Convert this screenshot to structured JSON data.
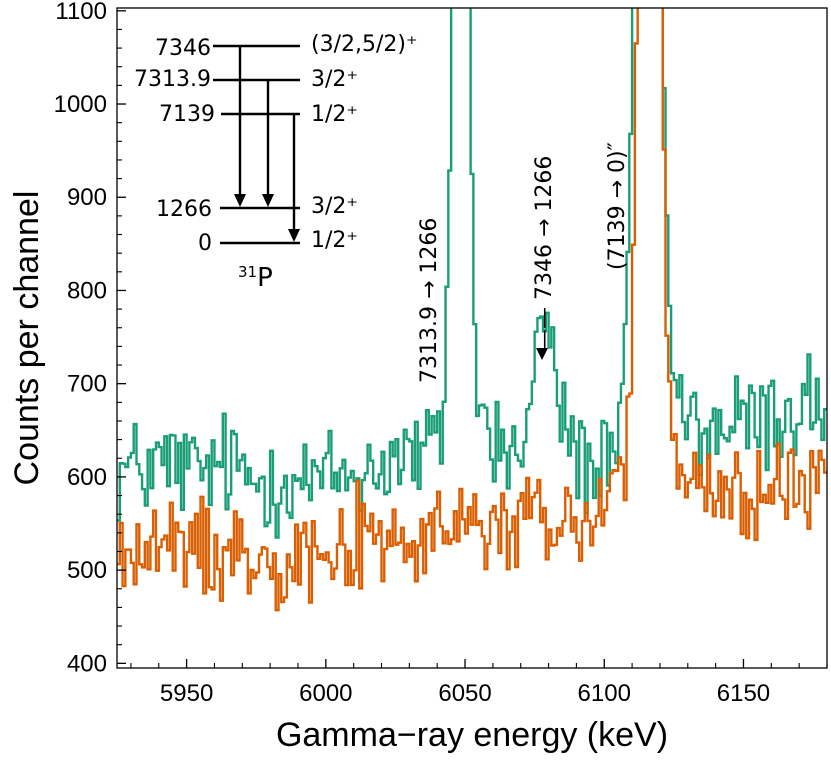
{
  "chart_data": {
    "type": "line",
    "style": "step",
    "xlabel": "Gamma−ray energy (keV)",
    "ylabel": "Counts per channel",
    "xlim": [
      5925,
      6180
    ],
    "ylim": [
      395,
      1103
    ],
    "xticks": [
      5950,
      6000,
      6050,
      6100,
      6150
    ],
    "yticks": [
      400,
      500,
      600,
      700,
      800,
      900,
      1000,
      1100
    ],
    "colors": {
      "green": "#1a9e77",
      "orange": "#d95f02"
    },
    "series": [
      {
        "name": "green",
        "color": "#1a9e77",
        "bin_width": 1.0,
        "features": [
          {
            "center": 6048.2,
            "height": 540,
            "sigma": 2.3
          },
          {
            "center": 6078.5,
            "height": 80,
            "sigma": 3.0
          },
          {
            "center": 6115.5,
            "height": 1200,
            "sigma": 3.5
          }
        ],
        "x": [
          5925,
          5935,
          5945,
          5955,
          5965,
          5975,
          5985,
          5995,
          6005,
          6015,
          6025,
          6035,
          6042,
          6046,
          6048,
          6050,
          6054,
          6060,
          6070,
          6078,
          6085,
          6095,
          6105,
          6110,
          6116,
          6122,
          6130,
          6140,
          6150,
          6160,
          6170,
          6180
        ],
        "y": [
          605,
          610,
          613,
          605,
          612,
          595,
          600,
          595,
          600,
          607,
          622,
          622,
          640,
          900,
          1110,
          1020,
          690,
          635,
          622,
          705,
          660,
          605,
          615,
          700,
          1110,
          700,
          652,
          652,
          656,
          662,
          675,
          682
        ]
      },
      {
        "name": "orange",
        "color": "#d95f02",
        "bin_width": 1.0,
        "features": [
          {
            "center": 6116.3,
            "height": 1200,
            "sigma": 2.9
          }
        ],
        "x": [
          5925,
          5935,
          5945,
          5955,
          5965,
          5975,
          5985,
          5995,
          6005,
          6015,
          6025,
          6035,
          6045,
          6055,
          6065,
          6075,
          6085,
          6095,
          6105,
          6110,
          6116,
          6122,
          6130,
          6140,
          6150,
          6160,
          6170,
          6180
        ],
        "y": [
          513,
          520,
          522,
          525,
          520,
          518,
          518,
          523,
          526,
          530,
          532,
          527,
          543,
          548,
          545,
          553,
          545,
          552,
          600,
          650,
          1110,
          640,
          590,
          582,
          582,
          582,
          585,
          592
        ]
      }
    ],
    "annotations": [
      {
        "text": "7313.9 → 1266",
        "x": 6048,
        "y": 760
      },
      {
        "text": "—— 7346 → 1266",
        "x": 6077,
        "y": 800
      },
      {
        "text": "(7139 → 0)″",
        "x": 6111,
        "y": 800
      }
    ],
    "inset": {
      "nucleus_mass": "31",
      "nucleus_symbol": "P",
      "levels": [
        {
          "energy": "7346",
          "spin": "(3/2,5/2)⁺"
        },
        {
          "energy": "7313.9",
          "spin": "3/2⁺"
        },
        {
          "energy": "7139",
          "spin": "1/2⁺"
        },
        {
          "energy": "1266",
          "spin": "3/2⁺"
        },
        {
          "energy": "0",
          "spin": "1/2⁺"
        }
      ]
    }
  }
}
